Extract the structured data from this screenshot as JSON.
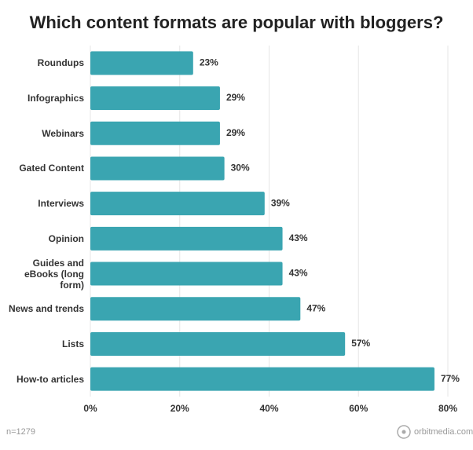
{
  "chart_data": {
    "type": "bar",
    "orientation": "horizontal",
    "title": "Which content formats are popular with bloggers?",
    "categories": [
      "Roundups",
      "Infographics",
      "Webinars",
      "Gated Content",
      "Interviews",
      "Opinion",
      "Guides and eBooks (long form)",
      "News and trends",
      "Lists",
      "How-to articles"
    ],
    "values": [
      23,
      29,
      29,
      30,
      39,
      43,
      43,
      47,
      57,
      77
    ],
    "value_labels": [
      "23%",
      "29%",
      "29%",
      "30%",
      "39%",
      "43%",
      "43%",
      "47%",
      "57%",
      "77%"
    ],
    "color": "#3aa5b1",
    "xlim": [
      0,
      80
    ],
    "xticks": [
      {
        "value": 0,
        "label": "0%"
      },
      {
        "value": 20,
        "label": "20%"
      },
      {
        "value": 40,
        "label": "40%"
      },
      {
        "value": 60,
        "label": "60%"
      },
      {
        "value": 80,
        "label": "80%"
      }
    ],
    "grid": true,
    "footnote": "n=1279",
    "source": "orbitmedia.com"
  }
}
